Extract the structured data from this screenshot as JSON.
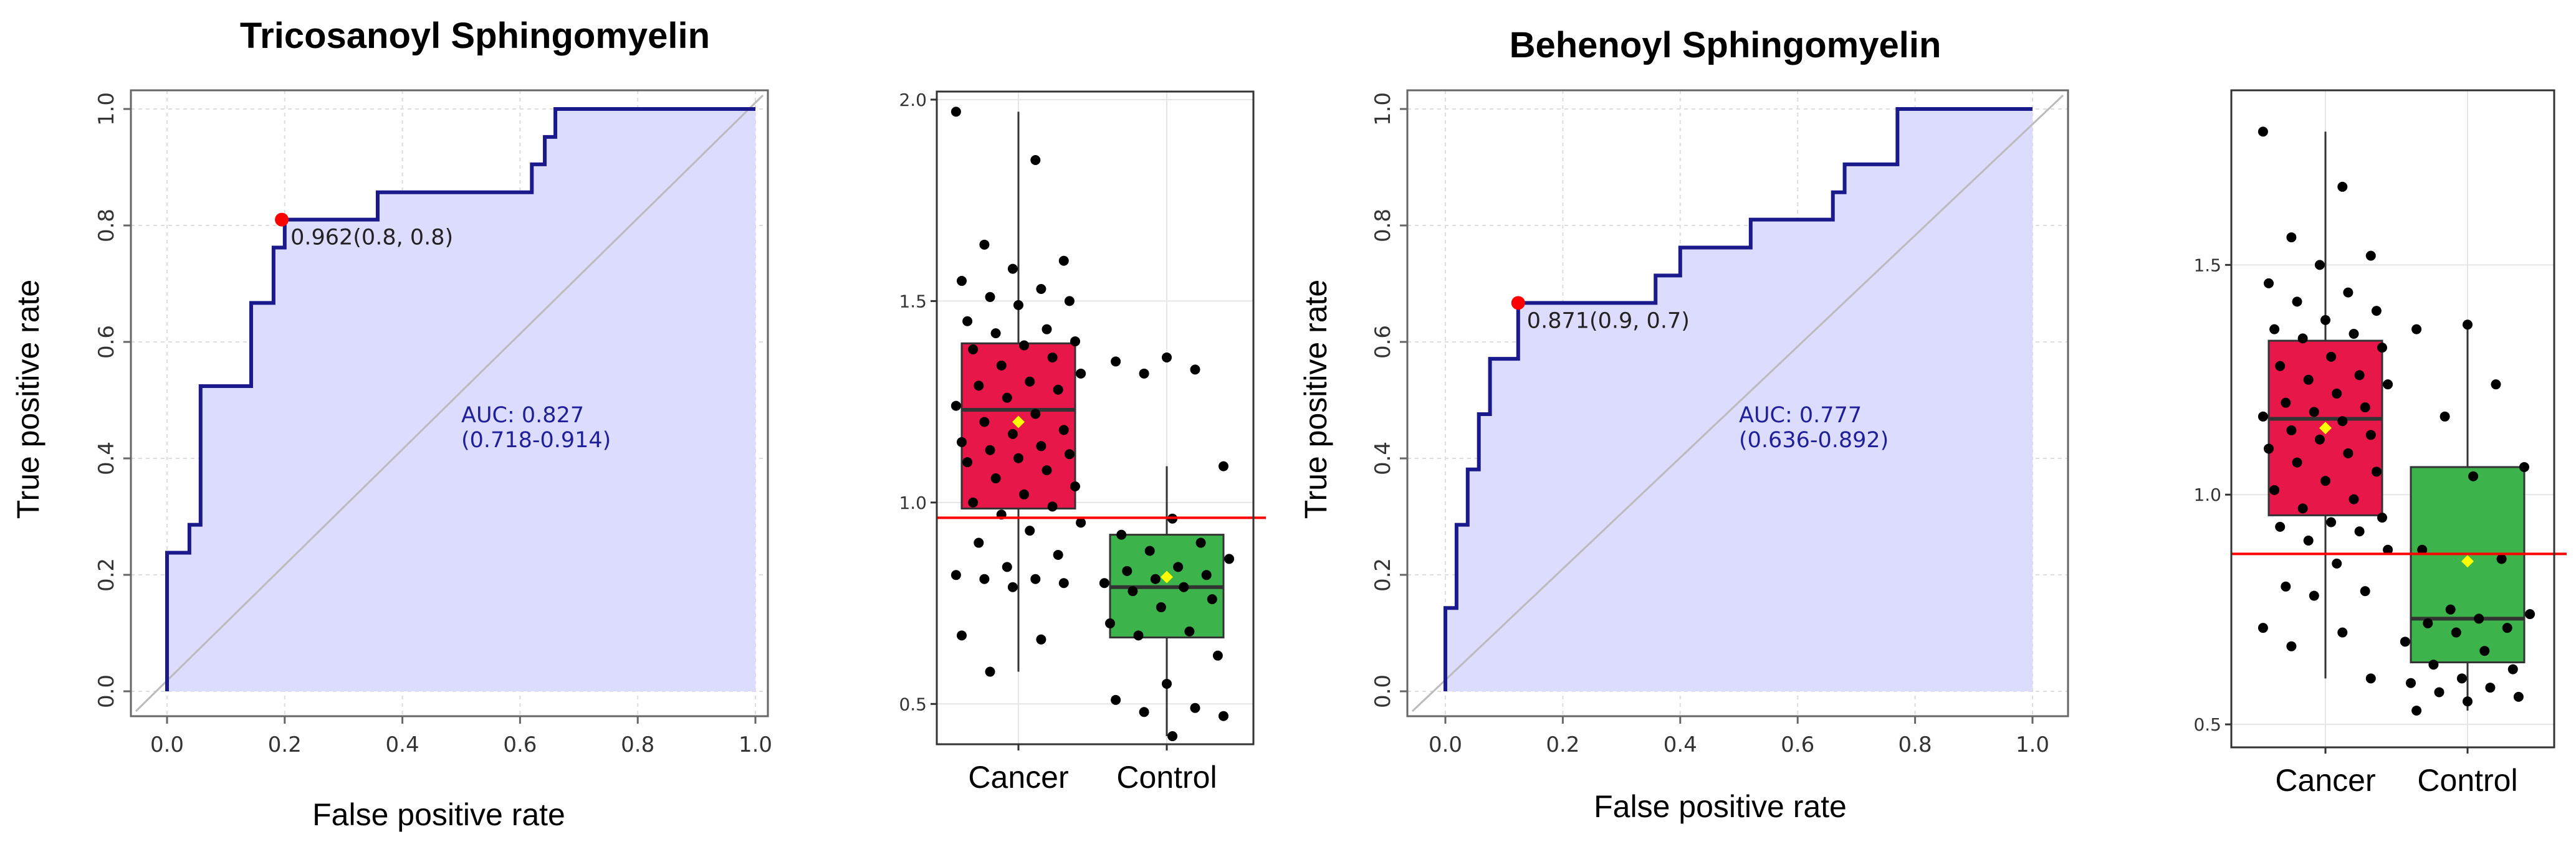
{
  "colors": {
    "roc_line": "#1a1a8c",
    "roc_fill": "#dcdcff",
    "cutoff_point": "#ff0000",
    "cancer_box": "#e8174a",
    "control_box": "#3cb44b",
    "mean_marker": "#ffff00",
    "threshold_line": "#ff0000",
    "diagonal": "#bbbbbb",
    "grid": "#dddddd"
  },
  "chart_data": [
    {
      "type": "line",
      "title": "Tricosanoyl Sphingomyelin",
      "xlabel": "False positive rate",
      "ylabel": "True positive rate",
      "xlim": [
        0,
        1
      ],
      "ylim": [
        0,
        1
      ],
      "x_ticks": [
        "0.0",
        "0.2",
        "0.4",
        "0.6",
        "0.8",
        "1.0"
      ],
      "y_ticks": [
        "0.0",
        "0.2",
        "0.4",
        "0.6",
        "0.8",
        "1.0"
      ],
      "roc_points": [
        [
          0,
          0
        ],
        [
          0,
          0.238
        ],
        [
          0.038,
          0.238
        ],
        [
          0.038,
          0.286
        ],
        [
          0.057,
          0.286
        ],
        [
          0.057,
          0.524
        ],
        [
          0.143,
          0.524
        ],
        [
          0.143,
          0.667
        ],
        [
          0.181,
          0.667
        ],
        [
          0.181,
          0.762
        ],
        [
          0.2,
          0.762
        ],
        [
          0.2,
          0.81
        ],
        [
          0.358,
          0.81
        ],
        [
          0.358,
          0.857
        ],
        [
          0.62,
          0.857
        ],
        [
          0.62,
          0.905
        ],
        [
          0.642,
          0.905
        ],
        [
          0.642,
          0.952
        ],
        [
          0.66,
          0.952
        ],
        [
          0.66,
          1.0
        ],
        [
          1.0,
          1.0
        ]
      ],
      "cutoff": {
        "x": 0.195,
        "y": 0.81,
        "label": "0.962(0.8, 0.8)"
      },
      "auc_label": "AUC: 0.827",
      "ci_label": "(0.718-0.914)"
    },
    {
      "type": "scatter",
      "title": "",
      "categories": [
        "Cancer",
        "Control"
      ],
      "ylim": [
        0.4,
        2.02
      ],
      "y_ticks": [
        "0.5",
        "1.0",
        "1.5",
        "2.0"
      ],
      "threshold": 0.962,
      "boxes": [
        {
          "name": "Cancer",
          "q1": 0.985,
          "median": 1.23,
          "q3": 1.395,
          "whisker_low": 0.58,
          "whisker_high": 1.97,
          "mean": 1.2
        },
        {
          "name": "Control",
          "q1": 0.665,
          "median": 0.79,
          "q3": 0.92,
          "whisker_low": 0.42,
          "whisker_high": 1.09,
          "mean": 0.815
        }
      ],
      "points": [
        {
          "group": "Cancer",
          "values": [
            1.97,
            1.85,
            1.64,
            1.6,
            1.58,
            1.55,
            1.53,
            1.51,
            1.5,
            1.49,
            1.45,
            1.43,
            1.42,
            1.4,
            1.39,
            1.38,
            1.36,
            1.34,
            1.32,
            1.3,
            1.29,
            1.28,
            1.26,
            1.24,
            1.22,
            1.2,
            1.18,
            1.17,
            1.15,
            1.14,
            1.13,
            1.12,
            1.11,
            1.1,
            1.08,
            1.06,
            1.04,
            1.02,
            1.0,
            0.99,
            0.97,
            0.95,
            0.93,
            0.9,
            0.87,
            0.84,
            0.82,
            0.81,
            0.81,
            0.8,
            0.79,
            0.67,
            0.66,
            0.58
          ]
        },
        {
          "group": "Control",
          "values": [
            1.36,
            1.35,
            1.33,
            1.32,
            1.09,
            0.96,
            0.92,
            0.9,
            0.88,
            0.86,
            0.84,
            0.83,
            0.82,
            0.81,
            0.8,
            0.79,
            0.78,
            0.76,
            0.74,
            0.7,
            0.68,
            0.67,
            0.62,
            0.55,
            0.51,
            0.49,
            0.48,
            0.47,
            0.42
          ]
        }
      ]
    },
    {
      "type": "line",
      "title": "Behenoyl Sphingomyelin",
      "xlabel": "False positive rate",
      "ylabel": "True positive rate",
      "xlim": [
        0,
        1
      ],
      "ylim": [
        0,
        1
      ],
      "x_ticks": [
        "0.0",
        "0.2",
        "0.4",
        "0.6",
        "0.8",
        "1.0"
      ],
      "y_ticks": [
        "0.0",
        "0.2",
        "0.4",
        "0.6",
        "0.8",
        "1.0"
      ],
      "roc_points": [
        [
          0,
          0
        ],
        [
          0,
          0.143
        ],
        [
          0.019,
          0.143
        ],
        [
          0.019,
          0.286
        ],
        [
          0.038,
          0.286
        ],
        [
          0.038,
          0.381
        ],
        [
          0.057,
          0.381
        ],
        [
          0.057,
          0.476
        ],
        [
          0.076,
          0.476
        ],
        [
          0.076,
          0.571
        ],
        [
          0.124,
          0.571
        ],
        [
          0.124,
          0.667
        ],
        [
          0.358,
          0.667
        ],
        [
          0.358,
          0.714
        ],
        [
          0.4,
          0.714
        ],
        [
          0.4,
          0.762
        ],
        [
          0.52,
          0.762
        ],
        [
          0.52,
          0.81
        ],
        [
          0.66,
          0.81
        ],
        [
          0.66,
          0.857
        ],
        [
          0.68,
          0.857
        ],
        [
          0.68,
          0.905
        ],
        [
          0.77,
          0.905
        ],
        [
          0.77,
          1.0
        ],
        [
          1.0,
          1.0
        ]
      ],
      "cutoff": {
        "x": 0.124,
        "y": 0.667,
        "label": "0.871(0.9, 0.7)"
      },
      "auc_label": "AUC: 0.777",
      "ci_label": "(0.636-0.892)"
    },
    {
      "type": "scatter",
      "title": "",
      "categories": [
        "Cancer",
        "Control"
      ],
      "ylim": [
        0.45,
        1.88
      ],
      "y_ticks": [
        "0.5",
        "1.0",
        "1.5"
      ],
      "threshold": 0.871,
      "boxes": [
        {
          "name": "Cancer",
          "q1": 0.955,
          "median": 1.165,
          "q3": 1.335,
          "whisker_low": 0.6,
          "whisker_high": 1.79,
          "mean": 1.145
        },
        {
          "name": "Control",
          "q1": 0.635,
          "median": 0.73,
          "q3": 1.06,
          "whisker_low": 0.53,
          "whisker_high": 1.37,
          "mean": 0.855
        }
      ],
      "points": [
        {
          "group": "Cancer",
          "values": [
            1.79,
            1.67,
            1.56,
            1.52,
            1.5,
            1.46,
            1.44,
            1.42,
            1.4,
            1.38,
            1.36,
            1.35,
            1.34,
            1.32,
            1.3,
            1.28,
            1.26,
            1.25,
            1.24,
            1.22,
            1.2,
            1.19,
            1.18,
            1.17,
            1.16,
            1.14,
            1.13,
            1.12,
            1.1,
            1.09,
            1.07,
            1.05,
            1.03,
            1.01,
            0.99,
            0.97,
            0.95,
            0.94,
            0.93,
            0.92,
            0.9,
            0.88,
            0.85,
            0.8,
            0.79,
            0.78,
            0.71,
            0.7,
            0.67,
            0.6
          ]
        },
        {
          "group": "Control",
          "values": [
            1.37,
            1.36,
            1.24,
            1.17,
            1.06,
            1.04,
            0.88,
            0.86,
            0.75,
            0.74,
            0.73,
            0.72,
            0.71,
            0.7,
            0.68,
            0.66,
            0.63,
            0.62,
            0.6,
            0.59,
            0.58,
            0.57,
            0.56,
            0.55,
            0.53
          ]
        }
      ]
    }
  ]
}
